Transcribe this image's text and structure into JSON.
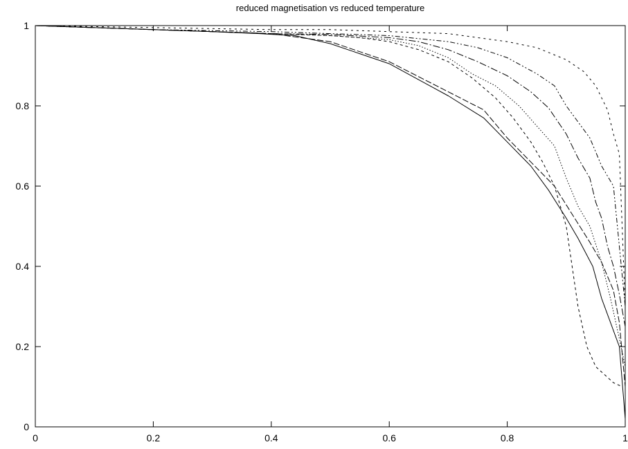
{
  "chart_data": {
    "type": "line",
    "title": "reduced magnetisation vs reduced temperature",
    "xlabel": "",
    "ylabel": "",
    "xlim": [
      0,
      1
    ],
    "ylim": [
      0,
      1
    ],
    "xticks": [
      "0",
      "0.2",
      "0.4",
      "0.6",
      "0.8",
      "1"
    ],
    "yticks": [
      "0",
      "0.2",
      "0.4",
      "0.6",
      "0.8",
      "1"
    ],
    "grid": false,
    "legend": "none",
    "series": [
      {
        "style": "solid",
        "x": [
          0,
          0.1,
          0.2,
          0.3,
          0.38,
          0.44,
          0.5,
          0.55,
          0.6,
          0.65,
          0.7,
          0.76,
          0.8,
          0.84,
          0.87,
          0.9,
          0.92,
          0.945,
          0.96,
          0.975,
          0.99,
          1.0
        ],
        "y": [
          1.0,
          0.995,
          0.99,
          0.985,
          0.98,
          0.975,
          0.955,
          0.93,
          0.905,
          0.865,
          0.825,
          0.77,
          0.71,
          0.65,
          0.59,
          0.52,
          0.47,
          0.4,
          0.32,
          0.26,
          0.2,
          0.02
        ]
      },
      {
        "style": "dashed",
        "x": [
          0,
          0.2,
          0.4,
          0.5,
          0.6,
          0.7,
          0.76,
          0.8,
          0.84,
          0.88,
          0.91,
          0.94,
          0.96,
          0.98,
          0.99,
          1.0
        ],
        "y": [
          1.0,
          0.99,
          0.98,
          0.96,
          0.91,
          0.835,
          0.79,
          0.72,
          0.66,
          0.6,
          0.53,
          0.46,
          0.41,
          0.34,
          0.26,
          0.1
        ]
      },
      {
        "style": "short-dash",
        "x": [
          0,
          0.2,
          0.4,
          0.5,
          0.55,
          0.6,
          0.65,
          0.7,
          0.74,
          0.78,
          0.81,
          0.84,
          0.86,
          0.88,
          0.9,
          0.91,
          0.92,
          0.935,
          0.95,
          0.965,
          0.98,
          0.995
        ],
        "y": [
          1.0,
          0.99,
          0.98,
          0.975,
          0.97,
          0.96,
          0.94,
          0.91,
          0.87,
          0.82,
          0.77,
          0.71,
          0.66,
          0.6,
          0.5,
          0.4,
          0.3,
          0.2,
          0.15,
          0.13,
          0.11,
          0.1
        ]
      },
      {
        "style": "dotted",
        "x": [
          0,
          0.2,
          0.4,
          0.5,
          0.6,
          0.65,
          0.7,
          0.74,
          0.78,
          0.82,
          0.85,
          0.88,
          0.9,
          0.92,
          0.94,
          0.96,
          0.975,
          0.99,
          1.0
        ],
        "y": [
          1.0,
          0.99,
          0.98,
          0.975,
          0.965,
          0.95,
          0.92,
          0.88,
          0.85,
          0.8,
          0.75,
          0.7,
          0.62,
          0.55,
          0.5,
          0.41,
          0.32,
          0.22,
          0.15
        ]
      },
      {
        "style": "dash-dot",
        "x": [
          0,
          0.2,
          0.4,
          0.5,
          0.6,
          0.65,
          0.7,
          0.75,
          0.8,
          0.84,
          0.87,
          0.9,
          0.92,
          0.94,
          0.95,
          0.96,
          0.97,
          0.98,
          0.99,
          1.0
        ],
        "y": [
          1.0,
          0.99,
          0.98,
          0.978,
          0.97,
          0.96,
          0.94,
          0.91,
          0.875,
          0.835,
          0.795,
          0.73,
          0.67,
          0.62,
          0.56,
          0.52,
          0.45,
          0.4,
          0.33,
          0.25
        ]
      },
      {
        "style": "dash-dot-dot",
        "x": [
          0,
          0.2,
          0.4,
          0.5,
          0.6,
          0.7,
          0.75,
          0.8,
          0.85,
          0.88,
          0.9,
          0.92,
          0.94,
          0.96,
          0.98,
          0.99,
          1.0
        ],
        "y": [
          1.0,
          0.99,
          0.985,
          0.98,
          0.975,
          0.96,
          0.945,
          0.92,
          0.88,
          0.85,
          0.8,
          0.76,
          0.72,
          0.65,
          0.6,
          0.45,
          0.3
        ]
      },
      {
        "style": "fine-dash",
        "x": [
          0,
          0.2,
          0.4,
          0.5,
          0.6,
          0.7,
          0.75,
          0.8,
          0.85,
          0.9,
          0.93,
          0.95,
          0.97,
          0.98,
          0.99,
          1.0
        ],
        "y": [
          1.0,
          0.995,
          0.99,
          0.99,
          0.985,
          0.98,
          0.97,
          0.96,
          0.945,
          0.915,
          0.885,
          0.85,
          0.79,
          0.73,
          0.68,
          0.3
        ]
      }
    ]
  }
}
